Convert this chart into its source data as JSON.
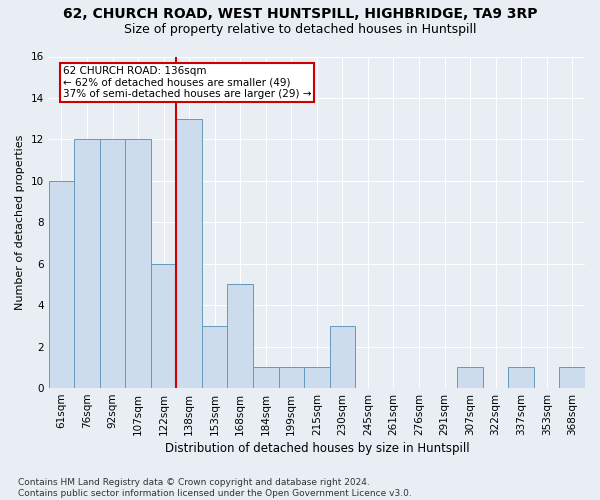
{
  "title1": "62, CHURCH ROAD, WEST HUNTSPILL, HIGHBRIDGE, TA9 3RP",
  "title2": "Size of property relative to detached houses in Huntspill",
  "xlabel": "Distribution of detached houses by size in Huntspill",
  "ylabel": "Number of detached properties",
  "categories": [
    "61sqm",
    "76sqm",
    "92sqm",
    "107sqm",
    "122sqm",
    "138sqm",
    "153sqm",
    "168sqm",
    "184sqm",
    "199sqm",
    "215sqm",
    "230sqm",
    "245sqm",
    "261sqm",
    "276sqm",
    "291sqm",
    "307sqm",
    "322sqm",
    "337sqm",
    "353sqm",
    "368sqm"
  ],
  "values": [
    10,
    12,
    12,
    12,
    6,
    13,
    3,
    5,
    1,
    1,
    1,
    3,
    0,
    0,
    0,
    0,
    1,
    0,
    1,
    0,
    1
  ],
  "bar_color": "#ccdcec",
  "bar_edge_color": "#6699bb",
  "red_line_index": 5,
  "annotation_text": "62 CHURCH ROAD: 136sqm\n← 62% of detached houses are smaller (49)\n37% of semi-detached houses are larger (29) →",
  "annotation_box_facecolor": "white",
  "annotation_box_edgecolor": "#cc0000",
  "ylim": [
    0,
    16
  ],
  "yticks": [
    0,
    2,
    4,
    6,
    8,
    10,
    12,
    14,
    16
  ],
  "footnote": "Contains HM Land Registry data © Crown copyright and database right 2024.\nContains public sector information licensed under the Open Government Licence v3.0.",
  "background_color": "#e8eef4",
  "grid_color": "#ffffff",
  "title1_fontsize": 10,
  "title2_fontsize": 9,
  "xlabel_fontsize": 8.5,
  "ylabel_fontsize": 8,
  "tick_fontsize": 7.5,
  "annotation_fontsize": 7.5,
  "footnote_fontsize": 6.5
}
